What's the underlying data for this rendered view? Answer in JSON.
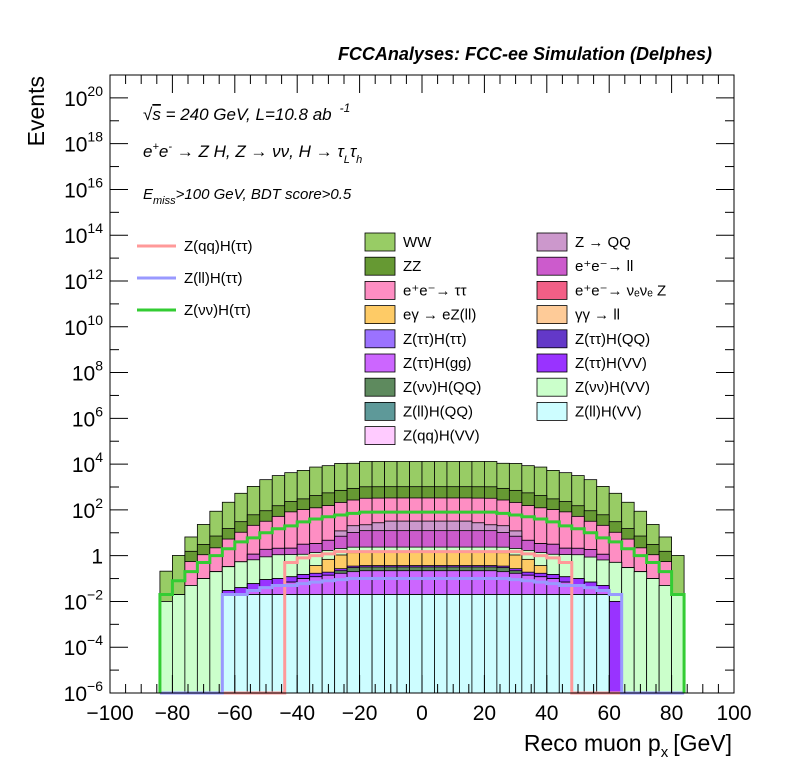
{
  "chart_data": {
    "type": "bar",
    "title": "FCCAnalyses: FCC-ee Simulation (Delphes)",
    "xlabel": "Reco muon p",
    "xlabel_sub": "x",
    "xlabel_unit": "[GeV]",
    "ylabel": "Events",
    "xlim": [
      -100,
      100
    ],
    "ylim": [
      1e-06,
      1e+21
    ],
    "yscale": "log",
    "grid": false,
    "x_ticks": [
      {
        "v": -100,
        "label": "−100"
      },
      {
        "v": -80,
        "label": "−80"
      },
      {
        "v": -60,
        "label": "−60"
      },
      {
        "v": -40,
        "label": "−40"
      },
      {
        "v": -20,
        "label": "−20"
      },
      {
        "v": 0,
        "label": "0"
      },
      {
        "v": 20,
        "label": "20"
      },
      {
        "v": 40,
        "label": "40"
      },
      {
        "v": 60,
        "label": "60"
      },
      {
        "v": 80,
        "label": "80"
      },
      {
        "v": 100,
        "label": "100"
      }
    ],
    "y_ticks": [
      {
        "e": 20,
        "label_base": "10",
        "label_exp": "20"
      },
      {
        "e": 18,
        "label_base": "10",
        "label_exp": "18"
      },
      {
        "e": 16,
        "label_base": "10",
        "label_exp": "16"
      },
      {
        "e": 14,
        "label_base": "10",
        "label_exp": "14"
      },
      {
        "e": 12,
        "label_base": "10",
        "label_exp": "12"
      },
      {
        "e": 10,
        "label_base": "10",
        "label_exp": "10"
      },
      {
        "e": 8,
        "label_base": "10",
        "label_exp": "8"
      },
      {
        "e": 6,
        "label_base": "10",
        "label_exp": "6"
      },
      {
        "e": 4,
        "label_base": "10",
        "label_exp": "4"
      },
      {
        "e": 2,
        "label_base": "10",
        "label_exp": "2"
      },
      {
        "e": 0,
        "label_base": "1",
        "label_exp": ""
      },
      {
        "e": -2,
        "label_base": "10",
        "label_exp": "−2"
      },
      {
        "e": -4,
        "label_base": "10",
        "label_exp": "−4"
      },
      {
        "e": -6,
        "label_base": "10",
        "label_exp": "−6"
      }
    ],
    "annotations": {
      "line1_sqrt": "√",
      "line1_s": "s",
      "line1_rest": " = 240 GeV, L=10.8 ab",
      "line1_exp": "-1",
      "line2_a": "e",
      "line2_a_sup": "+",
      "line2_b": "e",
      "line2_b_sup": "-",
      "line2_rest": " → Z H, Z  → νν, H  → τ",
      "line2_sub1": "L",
      "line2_tau2": "τ",
      "line2_sub2": "h",
      "line3_E": "E",
      "line3_sub": "miss",
      "line3_rest": ">100 GeV, BDT score>0.5"
    },
    "bin_edges": [
      -84,
      -80,
      -76,
      -72,
      -68,
      -64,
      -60,
      -56,
      -52,
      -48,
      -44,
      -40,
      -36,
      -32,
      -28,
      -24,
      -20,
      -16,
      -12,
      -8,
      -4,
      0,
      4,
      8,
      12,
      16,
      20,
      24,
      28,
      32,
      36,
      40,
      44,
      48,
      52,
      56,
      60,
      64,
      68,
      72,
      76,
      80,
      84
    ],
    "stacked_series": [
      {
        "name": "Z(ll)H(VV)",
        "color": "#cdfdff",
        "values": [
          0,
          0,
          0,
          0,
          0,
          0.02,
          0.02,
          0.02,
          0.02,
          0.02,
          0.02,
          0.02,
          0.02,
          0.02,
          0.02,
          0.02,
          0.02,
          0.02,
          0.02,
          0.02,
          0.02,
          0.02,
          0.02,
          0.02,
          0.02,
          0.02,
          0.02,
          0.02,
          0.02,
          0.02,
          0.02,
          0.02,
          0.02,
          0.02,
          0.02,
          0.02,
          0,
          0,
          0,
          0,
          0,
          0
        ]
      },
      {
        "name": "Z(ττ)H(QQ)",
        "color": "#6338c8",
        "values": [
          0,
          0,
          0,
          0,
          0,
          0,
          0,
          0,
          0,
          0,
          0,
          0,
          0,
          0,
          0,
          0,
          0,
          0,
          0,
          0.0001,
          0.0002,
          0.0002,
          0.0002,
          0.0001,
          0,
          0,
          0,
          0,
          0,
          0,
          0,
          0,
          0,
          0,
          0,
          0,
          0,
          0,
          0,
          0,
          0,
          0
        ]
      },
      {
        "name": "Z(ττ)H(gg)",
        "color": "#cc66ff",
        "values": [
          0,
          0,
          0,
          0,
          0,
          0,
          0,
          0.01,
          0.02,
          0.03,
          0.05,
          0.08,
          0.1,
          0.12,
          0.15,
          0.18,
          0.2,
          0.2,
          0.2,
          0.2,
          0.2,
          0.2,
          0.2,
          0.2,
          0.2,
          0.2,
          0.2,
          0.18,
          0.15,
          0.12,
          0.1,
          0.08,
          0.05,
          0.03,
          0.02,
          0.01,
          0,
          0,
          0,
          0,
          0,
          0
        ]
      },
      {
        "name": "Z(νν)H(QQ)",
        "color": "#5e8a5e",
        "values": [
          0,
          0,
          0,
          0,
          0,
          0,
          0,
          0,
          0,
          0,
          0,
          0,
          0,
          0,
          0.05,
          0.1,
          0.1,
          0.1,
          0.1,
          0.1,
          0.1,
          0.1,
          0.1,
          0.1,
          0.1,
          0.1,
          0.1,
          0.1,
          0.05,
          0,
          0,
          0,
          0,
          0,
          0,
          0,
          0,
          0,
          0,
          0,
          0,
          0
        ]
      },
      {
        "name": "Z(ττ)H(VV)",
        "color": "#9933ff",
        "values": [
          0,
          0,
          0,
          0,
          0,
          0.01,
          0.02,
          0.03,
          0.05,
          0.05,
          0.05,
          0.05,
          0.05,
          0.05,
          0.05,
          0.05,
          0.05,
          0.05,
          0.05,
          0.05,
          0.05,
          0.05,
          0.05,
          0.05,
          0.05,
          0.05,
          0.05,
          0.05,
          0.05,
          0.05,
          0.05,
          0.05,
          0.05,
          0.05,
          0.03,
          0.02,
          0.01,
          0,
          0,
          0,
          0,
          0
        ]
      },
      {
        "name": "eγ → eZ(ll)",
        "color": "#fecb66",
        "values": [
          0,
          0,
          0,
          0,
          0,
          0,
          0,
          0,
          0,
          0,
          0,
          0,
          0.2,
          0.5,
          0.8,
          1,
          1,
          1,
          1,
          1,
          1,
          1,
          1,
          1,
          1,
          1,
          1,
          1,
          0.8,
          0.5,
          0.2,
          0,
          0,
          0,
          0,
          0,
          0,
          0,
          0,
          0,
          0,
          0
        ]
      },
      {
        "name": "Z(νν)H(VV)",
        "color": "#cbffcb",
        "values": [
          0.01,
          0.02,
          0.05,
          0.1,
          0.2,
          0.3,
          0.5,
          0.6,
          0.8,
          1,
          1,
          1,
          1,
          1,
          1,
          1,
          1,
          1,
          1,
          1,
          1,
          1,
          1,
          1,
          1,
          1,
          1,
          1,
          1,
          1,
          1,
          1,
          1,
          1,
          0.8,
          0.6,
          0.5,
          0.3,
          0.2,
          0.1,
          0.05,
          0.02
        ]
      },
      {
        "name": "e⁺e⁻→ ll",
        "color": "#cc5bcc",
        "values": [
          0,
          0,
          0,
          0,
          0,
          0,
          0,
          0.5,
          1,
          1,
          1,
          2,
          2,
          3,
          5,
          8,
          10,
          10,
          10,
          10,
          10,
          10,
          10,
          10,
          10,
          10,
          10,
          8,
          5,
          3,
          2,
          2,
          1,
          1,
          1,
          0.5,
          0,
          0,
          0,
          0,
          0,
          0
        ]
      },
      {
        "name": "Z → QQ",
        "color": "#cc98cc",
        "values": [
          0,
          0,
          0,
          0,
          0,
          0,
          0,
          0,
          0,
          0,
          0,
          0,
          0,
          0,
          5,
          10,
          10,
          15,
          20,
          20,
          20,
          20,
          20,
          20,
          20,
          15,
          10,
          10,
          5,
          0,
          0,
          0,
          0,
          0,
          0,
          0,
          0,
          0,
          0,
          0,
          0,
          0
        ]
      },
      {
        "name": "e⁺e⁻→ ττ",
        "color": "#fe8ec3",
        "values": [
          0,
          0,
          0.5,
          1,
          2,
          5,
          10,
          20,
          30,
          50,
          80,
          100,
          120,
          150,
          200,
          250,
          300,
          300,
          300,
          300,
          300,
          300,
          300,
          300,
          300,
          300,
          300,
          250,
          200,
          150,
          120,
          100,
          80,
          50,
          30,
          20,
          10,
          5,
          2,
          1,
          0.5,
          0
        ]
      },
      {
        "name": "ZZ",
        "color": "#669933",
        "values": [
          0,
          0,
          1,
          2,
          5,
          10,
          20,
          40,
          60,
          100,
          150,
          200,
          300,
          400,
          500,
          600,
          700,
          700,
          700,
          700,
          700,
          700,
          700,
          700,
          700,
          700,
          700,
          600,
          500,
          400,
          300,
          200,
          150,
          100,
          60,
          40,
          20,
          10,
          5,
          2,
          1,
          0
        ]
      },
      {
        "name": "WW",
        "color": "#98cc65",
        "values": [
          0.2,
          1,
          5,
          20,
          80,
          200,
          500,
          1000,
          2000,
          3000,
          4000,
          5000,
          7000,
          8000,
          10000,
          10000,
          12000,
          12000,
          12000,
          12000,
          12000,
          12000,
          12000,
          12000,
          12000,
          12000,
          12000,
          10000,
          10000,
          8000,
          7000,
          5000,
          4000,
          3000,
          2000,
          1000,
          500,
          200,
          80,
          20,
          5,
          1
        ]
      }
    ],
    "line_series": [
      {
        "name": "Z(qq)H(ττ)",
        "color": "#ff9999",
        "values": [
          0,
          0,
          0,
          0,
          0,
          0,
          0,
          0,
          0,
          0,
          0.5,
          0.8,
          1,
          1.2,
          1.5,
          1.5,
          1.5,
          1.5,
          1.5,
          1.5,
          1.5,
          1.5,
          1.5,
          1.5,
          1.5,
          1.5,
          1.5,
          1.5,
          1.5,
          1.2,
          1,
          0.8,
          0.5,
          0,
          0,
          0,
          0,
          0,
          0,
          0,
          0,
          0
        ]
      },
      {
        "name": "Z(ll)H(ττ)",
        "color": "#9999ff",
        "values": [
          0,
          0,
          0,
          0,
          0,
          0.02,
          0.02,
          0.03,
          0.04,
          0.05,
          0.05,
          0.06,
          0.07,
          0.08,
          0.09,
          0.1,
          0.1,
          0.1,
          0.1,
          0.1,
          0.1,
          0.1,
          0.1,
          0.1,
          0.1,
          0.1,
          0.1,
          0.1,
          0.09,
          0.08,
          0.07,
          0.06,
          0.05,
          0.05,
          0.04,
          0.03,
          0.02,
          0,
          0,
          0,
          0,
          0
        ]
      },
      {
        "name": "Z(νν)H(ττ)",
        "color": "#33cc33",
        "values": [
          0.02,
          0.08,
          0.2,
          0.5,
          1,
          2,
          4,
          6,
          10,
          15,
          20,
          30,
          40,
          50,
          60,
          70,
          80,
          80,
          80,
          80,
          80,
          80,
          80,
          80,
          80,
          80,
          80,
          70,
          60,
          50,
          40,
          30,
          20,
          15,
          10,
          6,
          4,
          2,
          1,
          0.5,
          0.2,
          0.02
        ]
      }
    ],
    "legend": {
      "lines": [
        {
          "label": "Z(qq)H(ττ)",
          "color": "#ff9999"
        },
        {
          "label": "Z(ll)H(ττ)",
          "color": "#9999ff"
        },
        {
          "label": "Z(νν)H(ττ)",
          "color": "#33cc33"
        }
      ],
      "col1": [
        {
          "label": "WW",
          "color": "#98cc65"
        },
        {
          "label": "ZZ",
          "color": "#669933"
        },
        {
          "label": "e⁺e⁻→ ττ",
          "color": "#fe8ec3"
        },
        {
          "label": "eγ → eZ(ll)",
          "color": "#fecb66"
        },
        {
          "label": "Z(ττ)H(ττ)",
          "color": "#9b72ff"
        },
        {
          "label": "Z(ττ)H(gg)",
          "color": "#cc66ff"
        },
        {
          "label": "Z(νν)H(QQ)",
          "color": "#5e8a5e"
        },
        {
          "label": "Z(ll)H(QQ)",
          "color": "#5e9999"
        },
        {
          "label": "Z(qq)H(VV)",
          "color": "#ffcbff"
        }
      ],
      "col2": [
        {
          "label": "Z → QQ",
          "color": "#cc98cc"
        },
        {
          "label": "e⁺e⁻→ ll",
          "color": "#cc5bcc"
        },
        {
          "label": "e⁺e⁻→ νₑνₑ Z",
          "color": "#f25f86"
        },
        {
          "label": "γγ → ll",
          "color": "#fecb98"
        },
        {
          "label": "Z(ττ)H(QQ)",
          "color": "#6338c8"
        },
        {
          "label": "Z(ττ)H(VV)",
          "color": "#9933ff"
        },
        {
          "label": "Z(νν)H(VV)",
          "color": "#cbffcb"
        },
        {
          "label": "Z(ll)H(VV)",
          "color": "#cdfdff"
        }
      ]
    }
  }
}
